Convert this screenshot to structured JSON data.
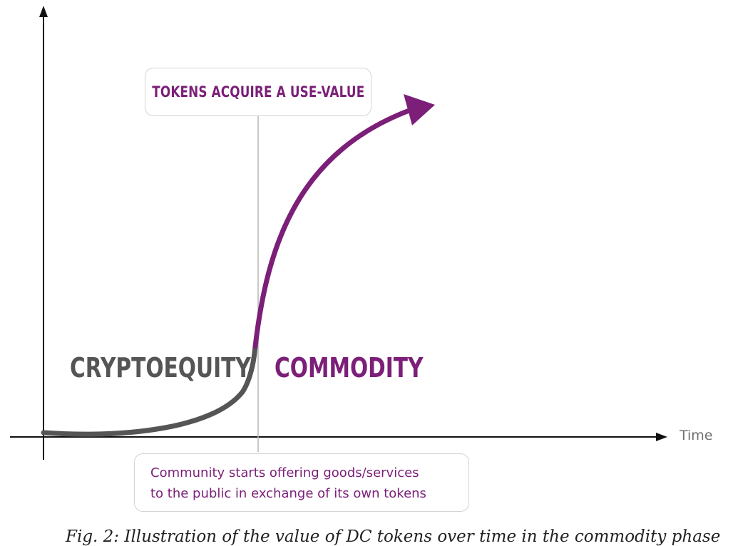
{
  "diagram": {
    "callout_top": "TOKENS ACQUIRE A USE-VALUE",
    "callout_bottom": [
      "Community starts offering goods/services",
      "to the public in exchange of its own tokens"
    ],
    "phase_left": "CRYPTOEQUITY",
    "phase_right": "COMMODITY",
    "x_axis_label": "Time",
    "caption": "Fig. 2: Illustration of the value of DC tokens over time in the commodity phase"
  },
  "colors": {
    "purple": "#7b1f78",
    "gray_curve": "#555555",
    "axis": "#111111",
    "divider": "#b5b5b5",
    "callout_border": "#d4d4d4"
  }
}
